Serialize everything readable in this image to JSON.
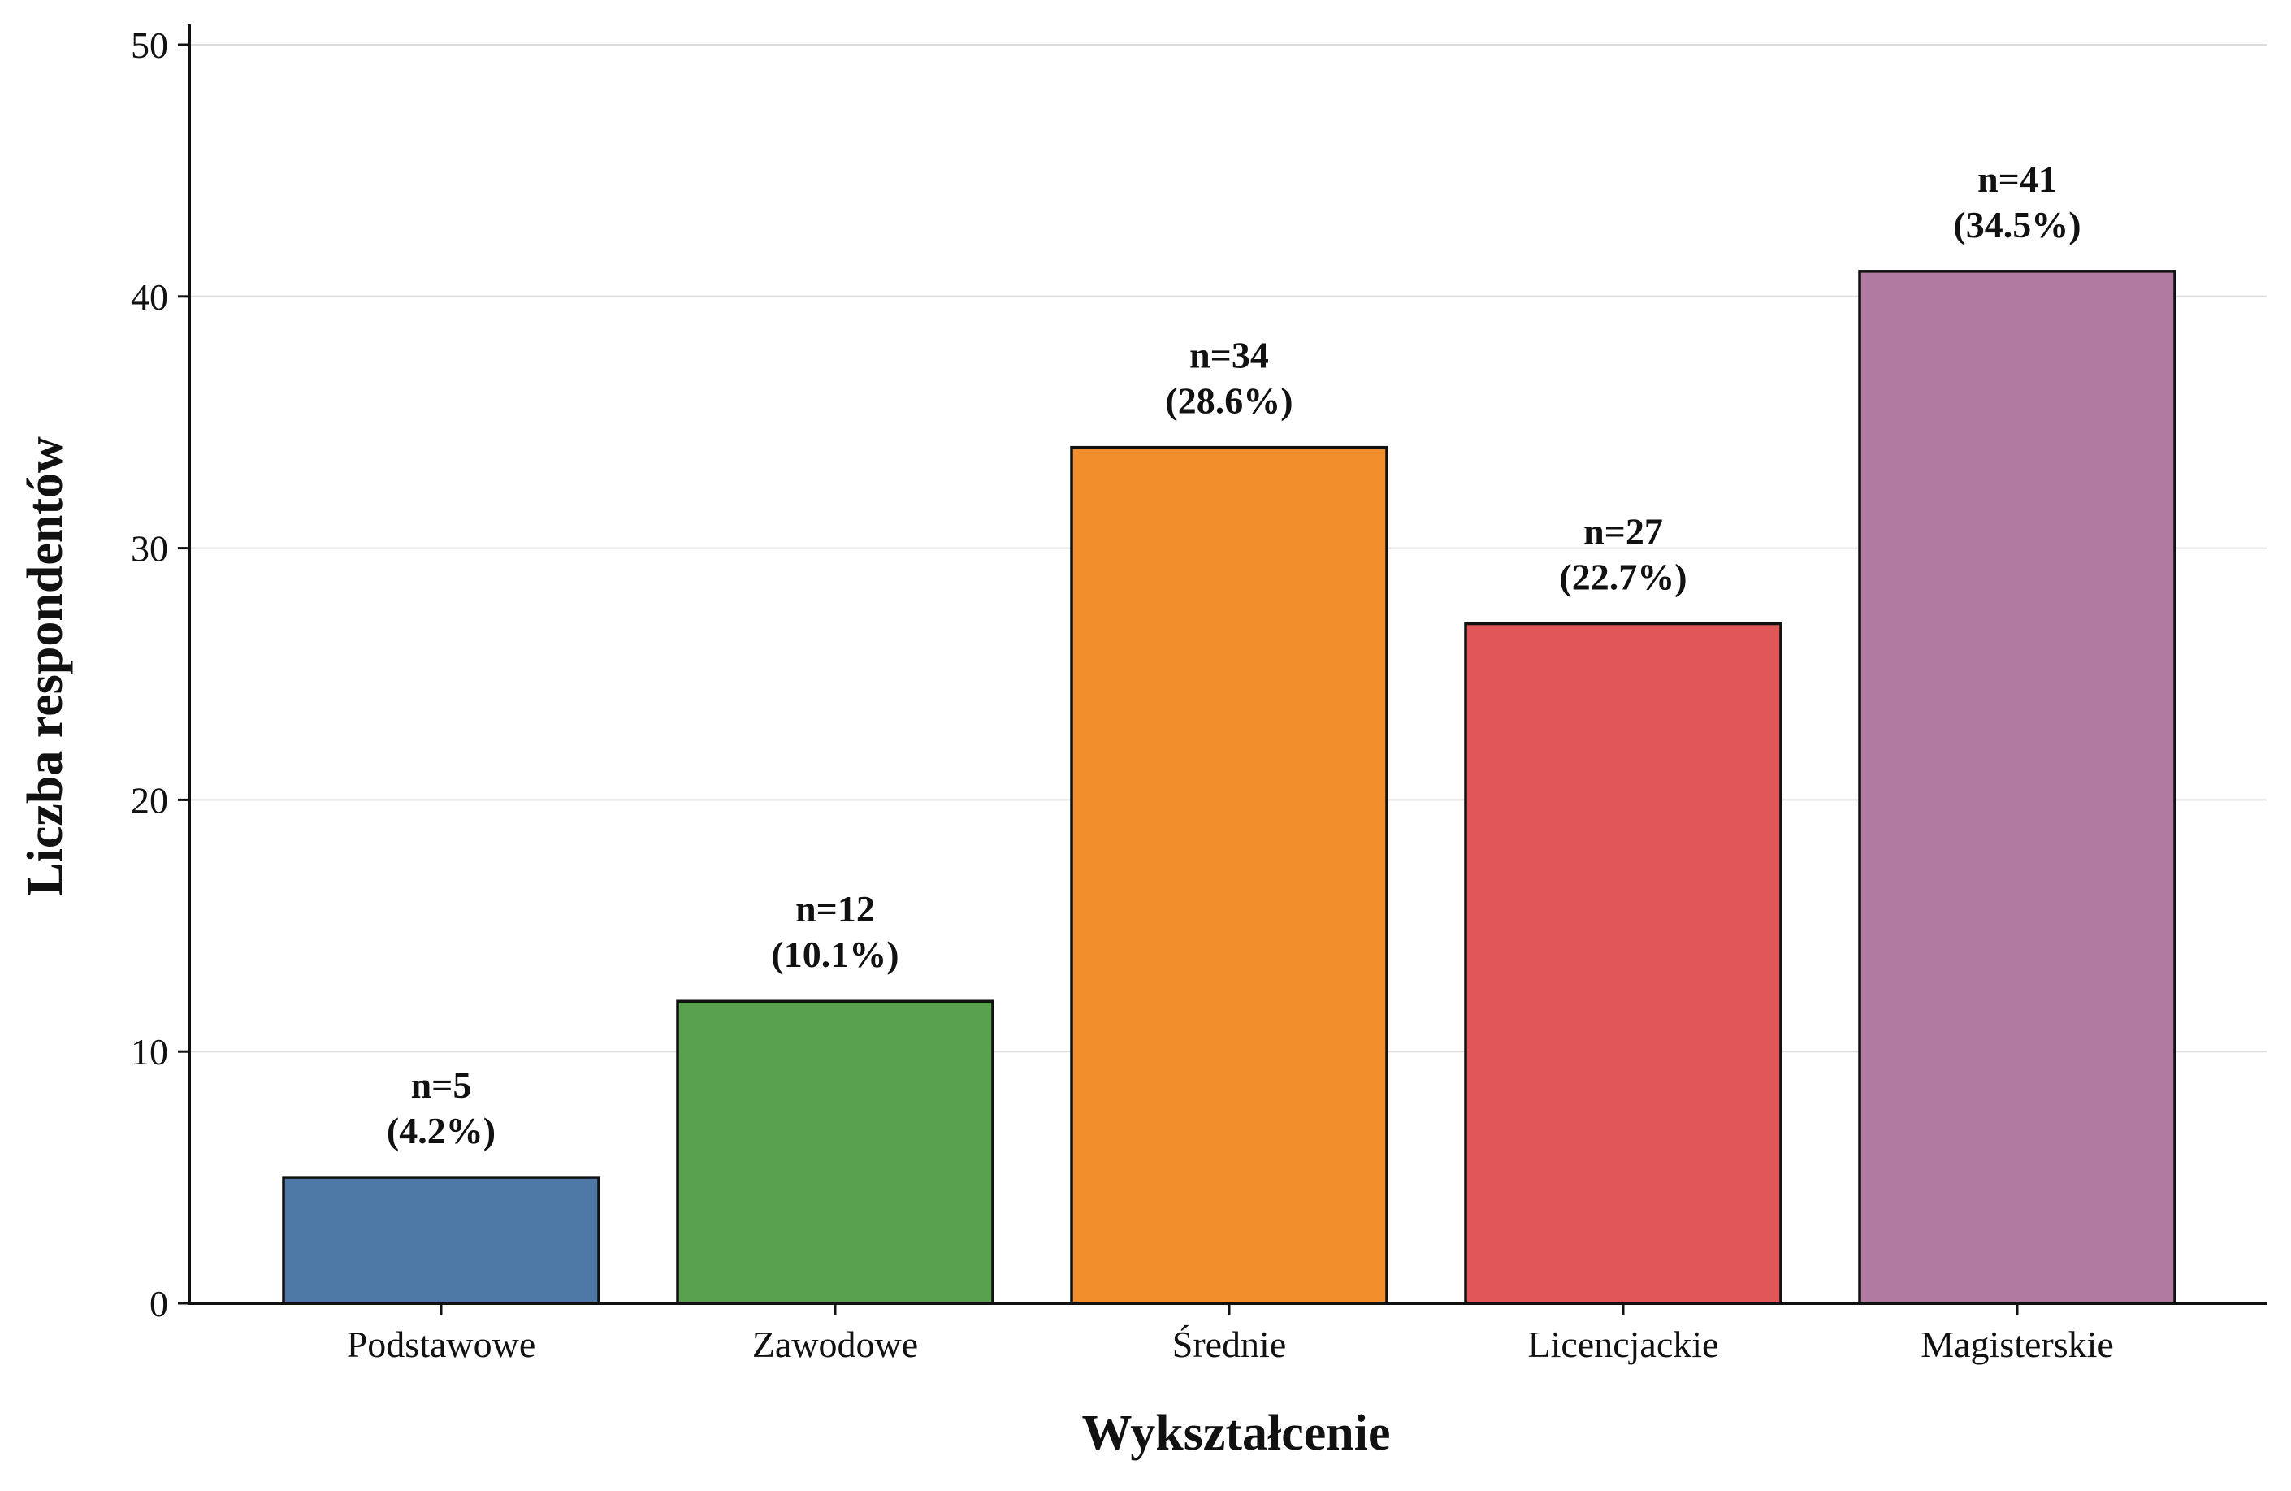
{
  "chart_data": {
    "type": "bar",
    "categories": [
      "Podstawowe",
      "Zawodowe",
      "Średnie",
      "Licencjackie",
      "Magisterskie"
    ],
    "values": [
      5,
      12,
      34,
      27,
      41
    ],
    "data_labels": [
      [
        "n=5",
        "(4.2%)"
      ],
      [
        "n=12",
        "(10.1%)"
      ],
      [
        "n=34",
        "(28.6%)"
      ],
      [
        "n=27",
        "(22.7%)"
      ],
      [
        "n=41",
        "(34.5%)"
      ]
    ],
    "colors": [
      "#4e79a7",
      "#59a14f",
      "#f28e2b",
      "#e15759",
      "#b07aa1"
    ],
    "xlabel": "Wykształcenie",
    "ylabel": "Liczba respondentów",
    "ylim": [
      0,
      50
    ],
    "yticks": [
      "0",
      "10",
      "20",
      "30",
      "40",
      "50"
    ],
    "grid": "horizontal",
    "legend": "none"
  }
}
